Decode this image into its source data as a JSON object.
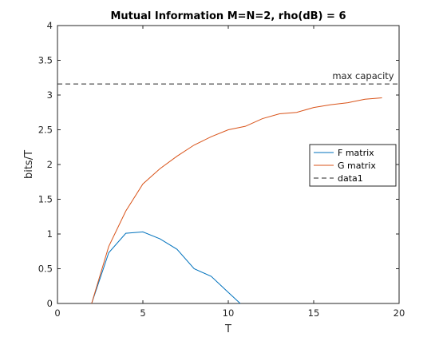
{
  "chart_data": {
    "type": "line",
    "title": "Mutual Information M=N=2, rho(dB) = 6",
    "xlabel": "T",
    "ylabel": "bits/T",
    "xlim": [
      0,
      20
    ],
    "ylim": [
      0,
      4
    ],
    "xticks": [
      0,
      5,
      10,
      15,
      20
    ],
    "xtick_labels": [
      "0",
      "5",
      "10",
      "15",
      "20"
    ],
    "yticks": [
      0,
      0.5,
      1,
      1.5,
      2,
      2.5,
      3,
      3.5,
      4
    ],
    "ytick_labels": [
      "0",
      "0.5",
      "1",
      "1.5",
      "2",
      "2.5",
      "3",
      "3.5",
      "4"
    ],
    "grid": false,
    "legend_location": "right-middle",
    "series": [
      {
        "name": "F matrix",
        "color": "#0072BD",
        "style": "solid",
        "x": [
          2,
          3,
          4,
          5,
          6,
          7,
          8,
          9,
          10,
          10.7
        ],
        "y": [
          0,
          0.73,
          1.01,
          1.03,
          0.93,
          0.78,
          0.5,
          0.39,
          0.16,
          0
        ]
      },
      {
        "name": "G matrix",
        "color": "#D95319",
        "style": "solid",
        "x": [
          2,
          3,
          4,
          5,
          6,
          7,
          8,
          9,
          10,
          11,
          12,
          13,
          14,
          15,
          16,
          17,
          18,
          19
        ],
        "y": [
          0,
          0.82,
          1.33,
          1.72,
          1.94,
          2.12,
          2.28,
          2.4,
          2.5,
          2.55,
          2.66,
          2.73,
          2.75,
          2.82,
          2.86,
          2.89,
          2.94,
          2.96
        ]
      },
      {
        "name": "data1",
        "color": "#262626",
        "style": "dashed",
        "x": [
          0,
          20
        ],
        "y": [
          3.16,
          3.16
        ]
      }
    ],
    "annotations": [
      {
        "text": "max capacity",
        "x": 19.7,
        "y": 3.16
      }
    ]
  }
}
